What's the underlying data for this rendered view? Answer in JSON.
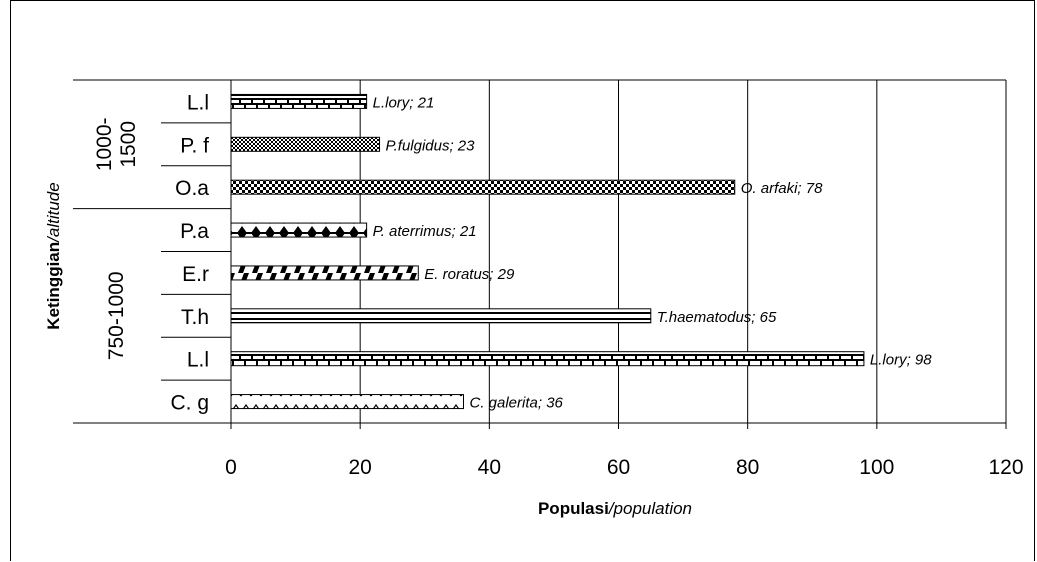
{
  "chart_data": {
    "type": "bar",
    "orientation": "horizontal",
    "xlabel_bold": "Populasi",
    "xlabel_italic": "/population",
    "ylabel_bold": "Ketinggian",
    "ylabel_italic": "/altitude",
    "xlim": [
      0,
      120
    ],
    "x_ticks": [
      0,
      20,
      40,
      60,
      80,
      100,
      120
    ],
    "grid": "vertical",
    "groups": [
      {
        "label_lines": [
          "1000-",
          "1500"
        ],
        "start": 0,
        "end": 3
      },
      {
        "label_lines": [
          "750-1000"
        ],
        "start": 3,
        "end": 8
      }
    ],
    "categories": [
      "L.l",
      "P. f",
      "O.a",
      "P.a",
      "E.r",
      "T.h",
      "L.l",
      "C. g"
    ],
    "values": [
      21,
      23,
      78,
      21,
      29,
      65,
      98,
      36
    ],
    "data_labels": [
      "L.lory; 21",
      "P.fulgidus; 23",
      "O. arfaki; 78",
      "P. aterrimus; 21",
      "E. roratus; 29",
      "T.haematodus; 65",
      "L.lory; 98",
      "C. galerita; 36"
    ],
    "patterns": [
      "brick",
      "dots",
      "checker",
      "diamonds",
      "diagonal",
      "hlines",
      "brick",
      "zigzag"
    ]
  }
}
